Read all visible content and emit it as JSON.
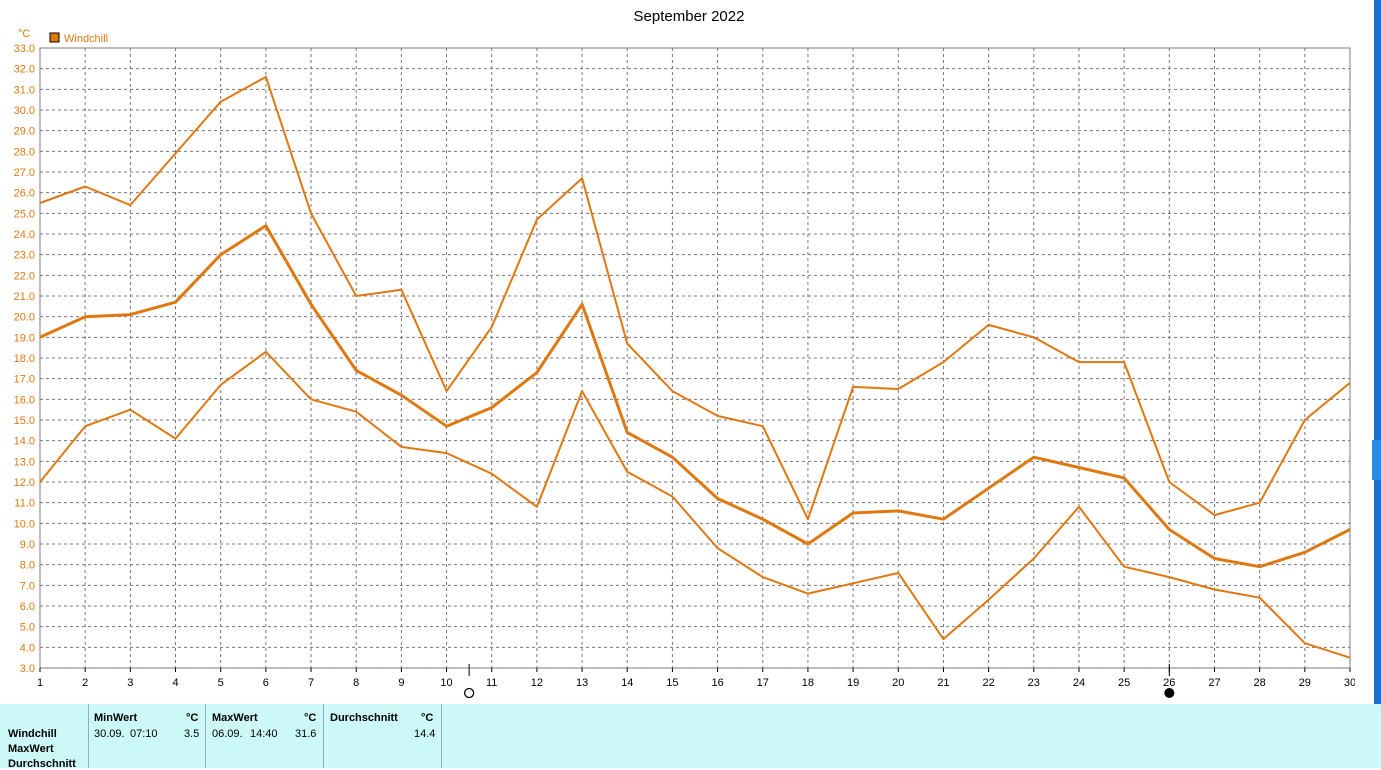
{
  "title": "September 2022",
  "unit_label": "°C",
  "legend": {
    "label": "Windchill",
    "color": "#e07810"
  },
  "chart_data": {
    "type": "line",
    "title": "September 2022",
    "ylabel": "°C",
    "xlabel": "",
    "ylim": [
      3.0,
      33.0
    ],
    "xlim": [
      1,
      30
    ],
    "y_ticks": [
      "3.0",
      "4.0",
      "5.0",
      "6.0",
      "7.0",
      "8.0",
      "9.0",
      "10.0",
      "11.0",
      "12.0",
      "13.0",
      "14.0",
      "15.0",
      "16.0",
      "17.0",
      "18.0",
      "19.0",
      "20.0",
      "21.0",
      "22.0",
      "23.0",
      "24.0",
      "25.0",
      "26.0",
      "27.0",
      "28.0",
      "29.0",
      "30.0",
      "31.0",
      "32.0",
      "33.0"
    ],
    "x": [
      1,
      2,
      3,
      4,
      5,
      6,
      7,
      8,
      9,
      10,
      11,
      12,
      13,
      14,
      15,
      16,
      17,
      18,
      19,
      20,
      21,
      22,
      23,
      24,
      25,
      26,
      27,
      28,
      29,
      30
    ],
    "grid": true,
    "legend_position": "top-left",
    "series": [
      {
        "name": "Windchill",
        "values": [
          25.5,
          26.3,
          25.4,
          27.9,
          30.4,
          31.6,
          25.0,
          21.0,
          21.3,
          16.4,
          19.5,
          24.7,
          26.7,
          18.7,
          16.4,
          15.2,
          14.7,
          10.2,
          16.6,
          16.5,
          17.8,
          19.6,
          19.0,
          17.8,
          17.8,
          12.0,
          10.4,
          11.0,
          15.0,
          16.8
        ]
      },
      {
        "name": "Windchill",
        "values": [
          19.0,
          20.0,
          20.1,
          20.7,
          23.0,
          24.4,
          20.6,
          17.4,
          16.2,
          14.7,
          15.6,
          17.3,
          20.6,
          14.4,
          13.2,
          11.2,
          10.2,
          9.0,
          10.5,
          10.6,
          10.2,
          11.7,
          13.2,
          12.7,
          12.2,
          9.7,
          8.3,
          7.9,
          8.6,
          9.7
        ]
      },
      {
        "name": "Windchill",
        "values": [
          12.0,
          14.7,
          15.5,
          14.1,
          16.7,
          18.3,
          16.0,
          15.4,
          13.7,
          13.4,
          12.4,
          10.8,
          16.4,
          12.5,
          11.3,
          8.8,
          7.4,
          6.6,
          7.1,
          7.6,
          4.4,
          6.3,
          8.3,
          10.8,
          7.9,
          7.4,
          6.8,
          6.4,
          4.2,
          3.5
        ]
      }
    ],
    "markers": {
      "full_moon_day": 10.5,
      "new_moon_day": 26
    }
  },
  "stats": {
    "row_labels": [
      "Windchill",
      "MaxWert",
      "Durchschnitt"
    ],
    "min": {
      "header": "MinWert",
      "unit": "°C",
      "date": "30.09.",
      "time": "07:10",
      "value": "3.5"
    },
    "max": {
      "header": "MaxWert",
      "unit": "°C",
      "date": "06.09.",
      "time": "14:40",
      "value": "31.6"
    },
    "avg": {
      "header": "Durchschnitt",
      "unit": "°C",
      "value": "14.4"
    }
  }
}
